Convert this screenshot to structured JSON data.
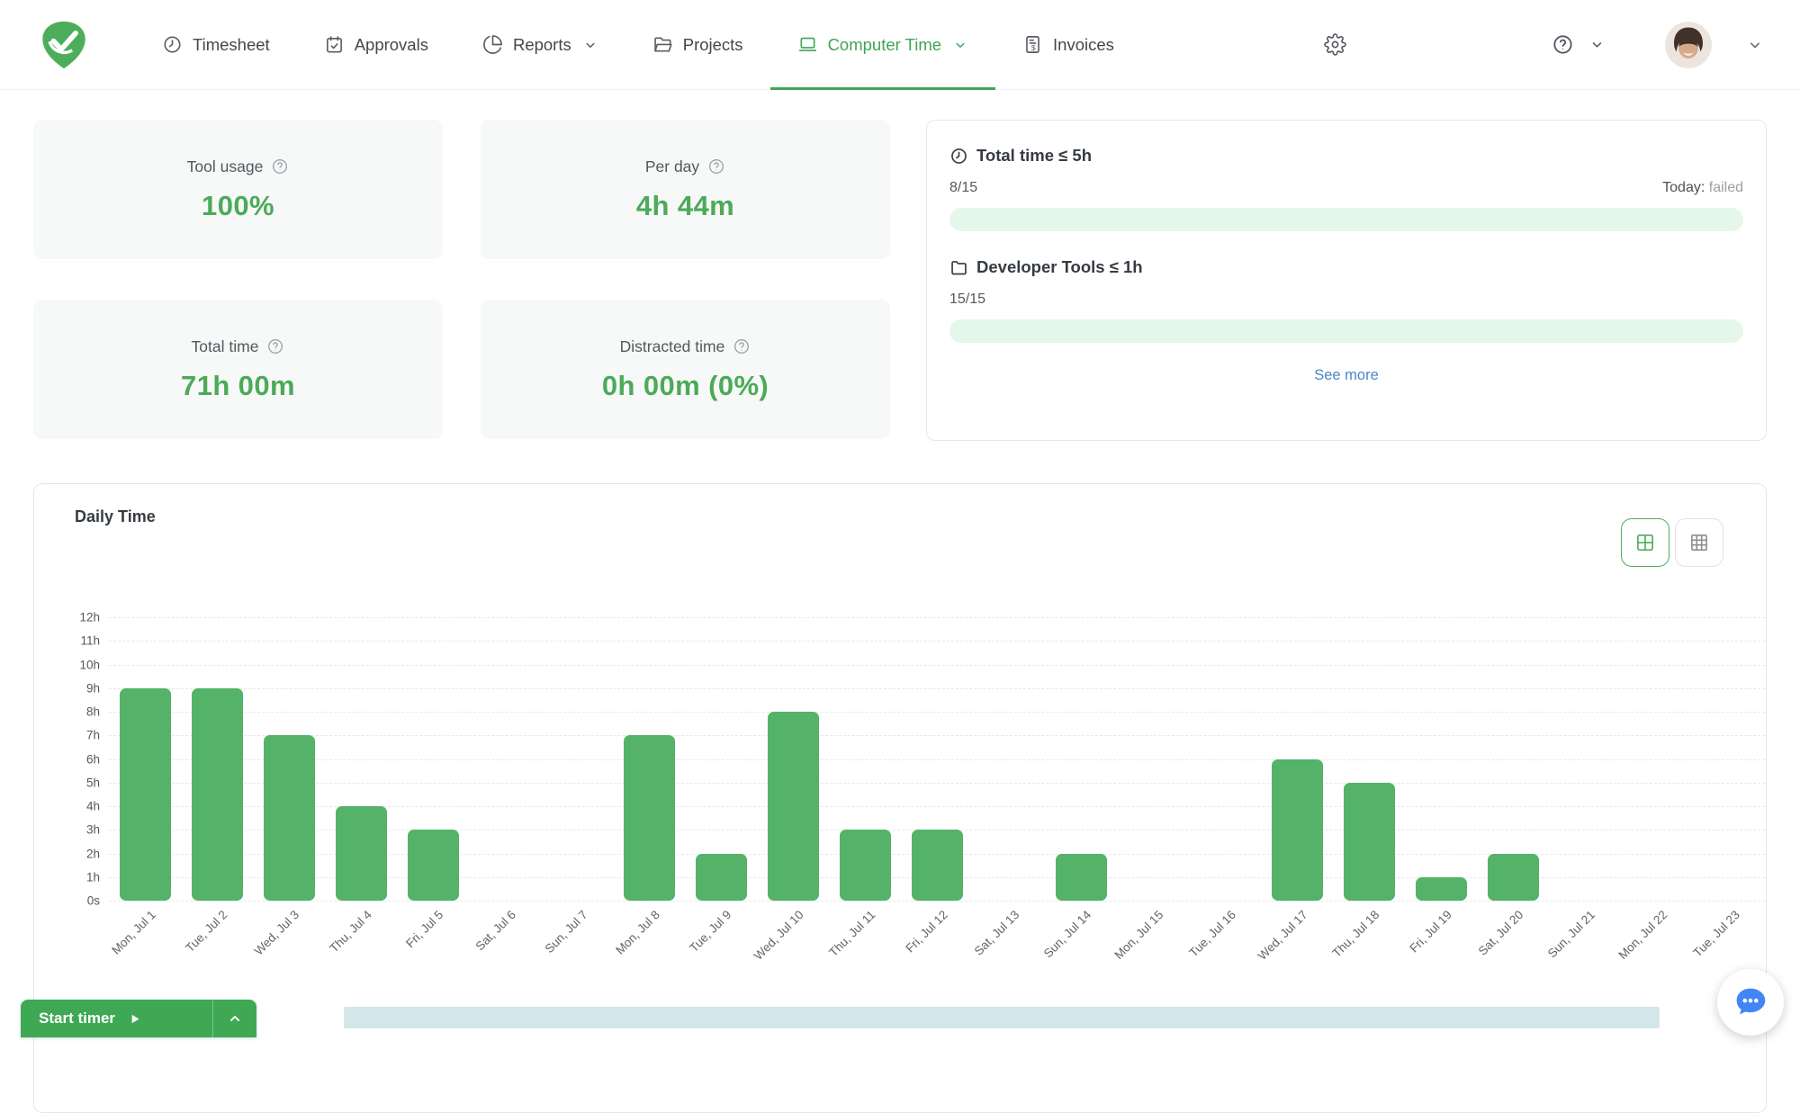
{
  "nav": {
    "items": [
      {
        "label": "Timesheet",
        "icon": "clock-icon"
      },
      {
        "label": "Approvals",
        "icon": "calendar-check-icon"
      },
      {
        "label": "Reports",
        "icon": "pie-chart-icon",
        "dropdown": true
      },
      {
        "label": "Projects",
        "icon": "folder-open-icon"
      },
      {
        "label": "Computer Time",
        "icon": "laptop-icon",
        "dropdown": true,
        "active": true
      },
      {
        "label": "Invoices",
        "icon": "invoice-icon"
      }
    ],
    "right_icons": [
      {
        "name": "gear-icon"
      },
      {
        "name": "question-circle-icon",
        "dropdown": true
      },
      {
        "name": "user-avatar",
        "dropdown": true
      }
    ]
  },
  "stats": [
    {
      "title": "Tool usage",
      "value": "100%"
    },
    {
      "title": "Per day",
      "value": "4h 44m"
    },
    {
      "title": "Total time",
      "value": "71h 00m"
    },
    {
      "title": "Distracted time",
      "value": "0h 00m (0%)"
    }
  ],
  "goals": {
    "items": [
      {
        "icon": "clock-icon",
        "title": "Total time ≤ 5h",
        "count": "8/15",
        "status_label": "Today:",
        "status_value": "failed"
      },
      {
        "icon": "folder-icon",
        "title": "Developer Tools ≤ 1h",
        "count": "15/15"
      }
    ],
    "see_more": "See more"
  },
  "chart": {
    "title": "Daily Time",
    "view_toggles": [
      "grid-2x2-icon",
      "grid-3x3-icon"
    ]
  },
  "chart_data": {
    "type": "bar",
    "title": "Daily Time",
    "categories": [
      "Mon, Jul 1",
      "Tue, Jul 2",
      "Wed, Jul 3",
      "Thu, Jul 4",
      "Fri, Jul 5",
      "Sat, Jul 6",
      "Sun, Jul 7",
      "Mon, Jul 8",
      "Tue, Jul 9",
      "Wed, Jul 10",
      "Thu, Jul 11",
      "Fri, Jul 12",
      "Sat, Jul 13",
      "Sun, Jul 14",
      "Mon, Jul 15",
      "Tue, Jul 16",
      "Wed, Jul 17",
      "Thu, Jul 18",
      "Fri, Jul 19",
      "Sat, Jul 20",
      "Sun, Jul 21",
      "Mon, Jul 22",
      "Tue, Jul 23"
    ],
    "values": [
      9,
      9,
      7,
      4,
      3,
      0,
      0,
      7,
      2,
      8,
      3,
      3,
      0,
      2,
      0,
      0,
      6,
      5,
      1,
      2,
      0,
      0,
      0
    ],
    "unit": "hours",
    "xlabel": "",
    "ylabel": "",
    "y_ticks": [
      "12h",
      "11h",
      "10h",
      "9h",
      "8h",
      "7h",
      "6h",
      "5h",
      "4h",
      "3h",
      "2h",
      "1h",
      "0s"
    ],
    "ylim": [
      0,
      12
    ],
    "grid": "horizontal-dashed",
    "bar_color": "#54b269"
  },
  "timer": {
    "label": "Start timer"
  },
  "colors": {
    "accent_green": "#3fa457",
    "value_green": "#4caa58",
    "bar_green": "#54b269",
    "progress_track": "#e4f7e9",
    "link_blue": "#4c86c6",
    "chat_blue": "#4285f4",
    "scrollbar_blue": "#d3e7ea"
  }
}
